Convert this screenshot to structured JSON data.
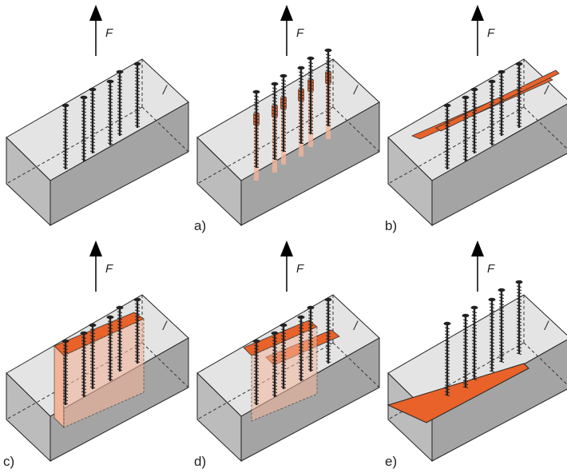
{
  "figure": {
    "force_label": "F",
    "grain_mark": "/",
    "panels": [
      {
        "id": "intact",
        "label": "",
        "mode": "intact"
      },
      {
        "id": "a",
        "label": "a)",
        "mode": "withdrawal"
      },
      {
        "id": "b",
        "label": "b)",
        "mode": "splitting"
      },
      {
        "id": "c",
        "label": "c)",
        "mode": "block-shear"
      },
      {
        "id": "d",
        "label": "d)",
        "mode": "row-shear"
      },
      {
        "id": "e",
        "label": "e)",
        "mode": "full-split"
      }
    ]
  },
  "colors": {
    "wood_top": "#e4e4e4",
    "wood_front": "#bcbcbc",
    "wood_side": "#a4a4a4",
    "failure": "#e8622a",
    "failure_light": "#f2b49a",
    "screw": "#222222",
    "arrow": "#000000"
  }
}
